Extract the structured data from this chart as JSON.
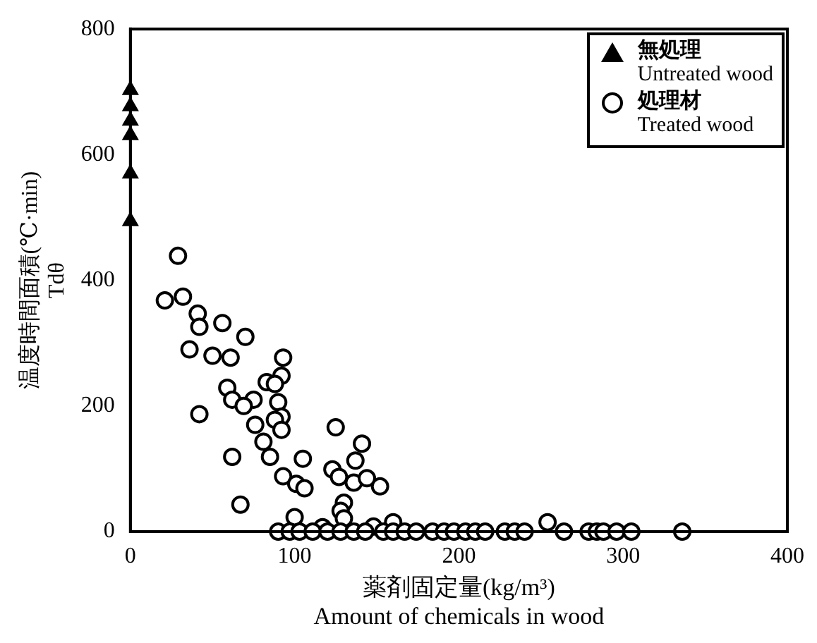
{
  "chart_data": {
    "type": "scatter",
    "xlabel": "薬剤固定量(kg/m³)\nAmount of chemicals in wood",
    "ylabel": "温度時間面積(℃·min)\nTdθ",
    "xlim": [
      0,
      400
    ],
    "ylim": [
      0,
      800
    ],
    "xticks": [
      0,
      100,
      200,
      300,
      400
    ],
    "yticks": [
      0,
      200,
      400,
      600,
      800
    ],
    "grid": false,
    "legend": "top right",
    "series": [
      {
        "name": "無処理\nUntreated wood",
        "color": "#000000",
        "marker": "triangle",
        "x": [
          0,
          0,
          0,
          0,
          0,
          0
        ],
        "values": [
          703,
          677,
          654,
          631,
          570,
          494
        ]
      },
      {
        "name": "処理材\nTreated wood",
        "color": "#000000",
        "marker": "circle",
        "x": [
          29,
          21,
          32,
          41,
          42,
          56,
          70,
          36,
          50,
          61,
          93,
          92,
          83,
          88,
          59,
          62,
          75,
          69,
          90,
          42,
          92,
          88,
          92,
          76,
          81,
          85,
          62,
          125,
          141,
          137,
          123,
          127,
          136,
          144,
          152,
          93,
          101,
          106,
          105,
          67,
          100,
          130,
          128,
          130,
          148,
          160,
          117,
          254,
          90,
          97,
          103,
          111,
          120,
          128,
          136,
          143,
          154,
          160,
          167,
          174,
          184,
          191,
          197,
          204,
          210,
          216,
          228,
          234,
          240,
          264,
          279,
          284,
          288,
          296,
          305,
          336
        ],
        "values": [
          439,
          368,
          374,
          347,
          326,
          332,
          310,
          290,
          280,
          277,
          277,
          248,
          238,
          235,
          229,
          210,
          210,
          200,
          206,
          187,
          183,
          178,
          162,
          170,
          143,
          119,
          119,
          166,
          140,
          113,
          99,
          87,
          78,
          85,
          72,
          88,
          76,
          69,
          116,
          43,
          23,
          46,
          33,
          21,
          8,
          15,
          7,
          15,
          0,
          0,
          0,
          0,
          0,
          0,
          0,
          0,
          0,
          0,
          0,
          0,
          0,
          0,
          0,
          0,
          0,
          0,
          0,
          0,
          0,
          0,
          0,
          0,
          0,
          0,
          0,
          0
        ]
      }
    ]
  }
}
